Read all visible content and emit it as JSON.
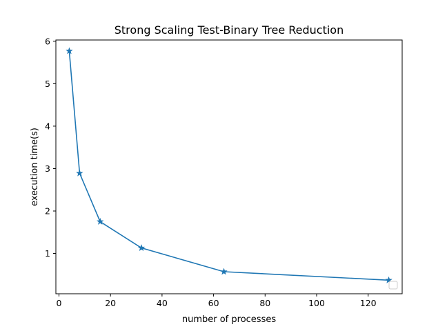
{
  "chart_data": {
    "type": "line",
    "title": "Strong Scaling Test-Binary Tree Reduction",
    "xlabel": "number of processes",
    "ylabel": "execution time(s)",
    "xlim": [
      -1.2,
      133.2
    ],
    "ylim": [
      0.05,
      6.03
    ],
    "xticks": [
      0,
      20,
      40,
      60,
      80,
      100,
      120
    ],
    "yticks": [
      1,
      2,
      3,
      4,
      5,
      6
    ],
    "grid": false,
    "legend": "lower-right",
    "marker": "star",
    "series": [
      {
        "name": "",
        "color": "#1f77b4",
        "x": [
          4,
          8,
          16,
          32,
          64,
          128
        ],
        "y": [
          5.77,
          2.89,
          1.75,
          1.13,
          0.57,
          0.37
        ]
      }
    ]
  }
}
